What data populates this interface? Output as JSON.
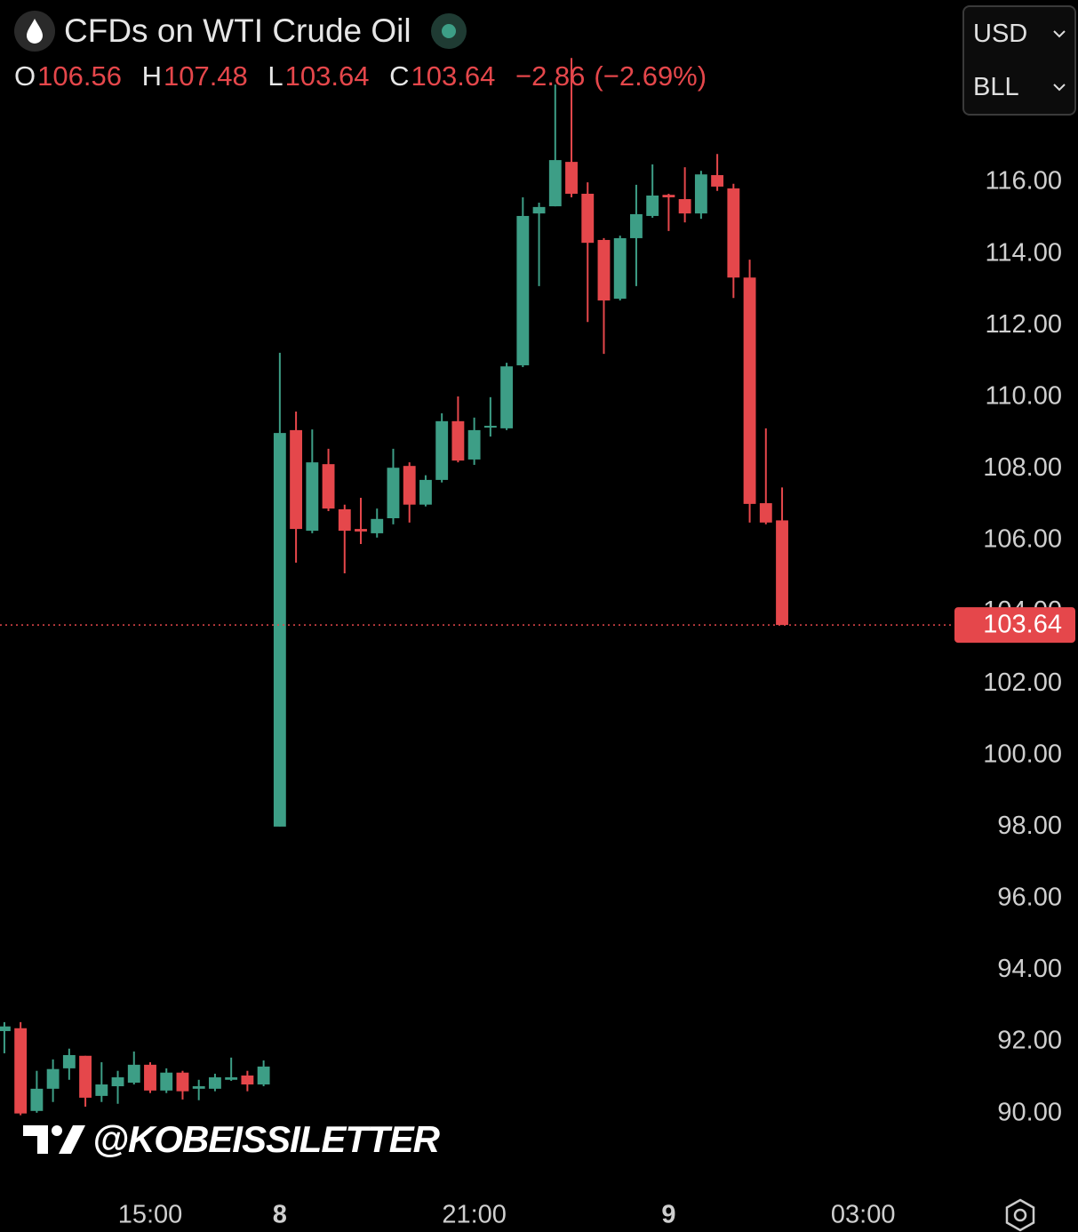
{
  "chart_data": {
    "type": "candlestick",
    "title": "CFDs on WTI Crude Oil",
    "legend": {
      "open_key": "O",
      "open": 106.56,
      "high_key": "H",
      "high": 107.48,
      "low_key": "L",
      "low": 103.64,
      "close_key": "C",
      "close": 103.64,
      "change": {
        "value": -2.86,
        "label": "−2.86"
      },
      "change_pct": {
        "value": -2.69,
        "label": "(−2.69%)"
      }
    },
    "currency_menu": "USD",
    "unit_menu": "BLL",
    "watermark": "@KOBEISSILETTER",
    "up_color": "#3d9e86",
    "down_color": "#e5474b",
    "open": [
      92.3,
      92.38,
      90.07,
      90.69,
      91.26,
      91.61,
      90.49,
      90.76,
      90.86,
      91.36,
      90.64,
      91.14,
      90.69,
      90.69,
      90.94,
      91.06,
      90.81,
      98.01,
      109.08,
      106.27,
      108.13,
      106.87,
      106.32,
      106.2,
      106.62,
      108.08,
      107.0,
      107.69,
      109.33,
      108.26,
      109.15,
      109.13,
      110.89,
      115.13,
      115.33,
      116.57,
      115.68,
      114.39,
      112.75,
      114.44,
      115.06,
      115.65,
      115.53,
      115.13,
      116.2,
      115.83,
      113.34,
      107.04,
      106.56
    ],
    "high": [
      92.55,
      92.55,
      91.19,
      91.51,
      91.81,
      91.61,
      91.43,
      91.19,
      91.73,
      91.43,
      91.26,
      91.19,
      90.94,
      91.11,
      91.56,
      91.19,
      91.48,
      111.24,
      109.6,
      109.1,
      108.56,
      107.0,
      107.19,
      106.89,
      108.56,
      108.18,
      107.82,
      109.55,
      110.02,
      109.43,
      110.0,
      110.96,
      115.58,
      115.43,
      118.73,
      119.47,
      116.0,
      114.44,
      114.51,
      115.93,
      116.5,
      115.68,
      116.42,
      116.32,
      116.79,
      115.96,
      113.84,
      109.13,
      107.48
    ],
    "low": [
      91.68,
      89.95,
      90.02,
      90.32,
      90.94,
      90.19,
      90.32,
      90.27,
      90.81,
      90.57,
      90.57,
      90.39,
      90.37,
      90.62,
      90.91,
      90.62,
      90.76,
      98.01,
      105.38,
      106.2,
      106.82,
      105.08,
      105.9,
      106.08,
      106.45,
      106.5,
      106.95,
      107.62,
      108.18,
      108.11,
      108.9,
      109.08,
      110.84,
      113.1,
      115.33,
      115.58,
      112.1,
      111.21,
      112.7,
      113.1,
      115.01,
      114.64,
      114.88,
      114.98,
      115.76,
      112.77,
      106.5,
      106.45,
      103.64
    ],
    "close": [
      92.43,
      90.0,
      90.69,
      91.24,
      91.63,
      90.44,
      90.81,
      91.01,
      91.36,
      90.64,
      91.14,
      90.62,
      90.76,
      91.01,
      91.01,
      90.81,
      91.31,
      109.0,
      106.32,
      108.18,
      106.89,
      106.27,
      106.25,
      106.6,
      108.03,
      107.0,
      107.69,
      109.33,
      108.23,
      109.08,
      109.2,
      110.86,
      115.06,
      115.31,
      116.62,
      115.68,
      114.31,
      112.7,
      114.44,
      115.11,
      115.63,
      115.58,
      115.13,
      116.22,
      115.88,
      113.34,
      107.02,
      106.5,
      103.64
    ],
    "last_price": 103.64,
    "ylim": [
      88.08,
      121.09
    ],
    "yticks": [
      {
        "value": 90,
        "label": "90.00"
      },
      {
        "value": 92,
        "label": "92.00"
      },
      {
        "value": 94,
        "label": "94.00"
      },
      {
        "value": 96,
        "label": "96.00"
      },
      {
        "value": 98,
        "label": "98.00"
      },
      {
        "value": 100,
        "label": "100.00"
      },
      {
        "value": 102,
        "label": "102.00"
      },
      {
        "value": 104,
        "label": "104.00"
      },
      {
        "value": 106,
        "label": "106.00"
      },
      {
        "value": 108,
        "label": "108.00"
      },
      {
        "value": 110,
        "label": "110.00"
      },
      {
        "value": 112,
        "label": "112.00"
      },
      {
        "value": 114,
        "label": "114.00"
      },
      {
        "value": 116,
        "label": "116.00"
      }
    ],
    "xlim": [
      -0.27,
      58.42
    ],
    "xticks": [
      {
        "value": 9,
        "label": "15:00"
      },
      {
        "value": 17,
        "label": "8"
      },
      {
        "value": 29,
        "label": "21:00"
      },
      {
        "value": 41,
        "label": "9"
      },
      {
        "value": 53,
        "label": "03:00"
      }
    ]
  }
}
